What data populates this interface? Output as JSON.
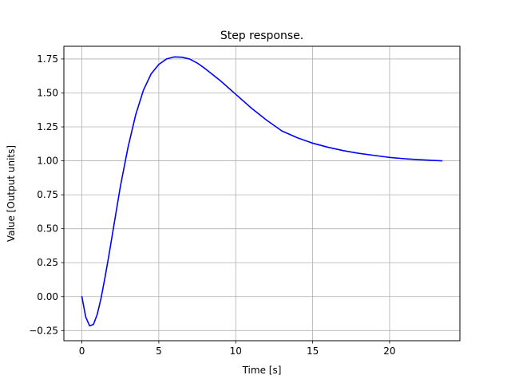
{
  "chart_data": {
    "type": "line",
    "title": "Step response.",
    "xlabel": "Time [s]",
    "ylabel": "Value [Output units]",
    "xlim": [
      -1.17,
      24.57
    ],
    "ylim": [
      -0.3245,
      1.8435
    ],
    "xticks": [
      0,
      5,
      10,
      15,
      20
    ],
    "xtick_labels": [
      "0",
      "5",
      "10",
      "15",
      "20"
    ],
    "yticks": [
      -0.25,
      0,
      0.25,
      0.5,
      0.75,
      1.0,
      1.25,
      1.5,
      1.75
    ],
    "ytick_labels": [
      "−0.25",
      "0.00",
      "0.25",
      "0.50",
      "0.75",
      "1.00",
      "1.25",
      "1.50",
      "1.75"
    ],
    "grid": true,
    "legend": "none",
    "series": [
      {
        "color": "#0000ff",
        "x": [
          0,
          0.25,
          0.5,
          0.75,
          1.0,
          1.25,
          1.5,
          1.75,
          2.0,
          2.5,
          3.0,
          3.5,
          4.0,
          4.5,
          5.0,
          5.5,
          6.0,
          6.5,
          7.0,
          7.5,
          8.0,
          9.0,
          10.0,
          11.0,
          12.0,
          13.0,
          14.0,
          15.0,
          16.0,
          17.0,
          18.0,
          19.0,
          20.0,
          21.0,
          22.0,
          23.4
        ],
        "y": [
          0.0,
          -0.15,
          -0.215,
          -0.205,
          -0.13,
          -0.01,
          0.14,
          0.3,
          0.47,
          0.81,
          1.1,
          1.34,
          1.52,
          1.64,
          1.71,
          1.75,
          1.765,
          1.763,
          1.75,
          1.72,
          1.68,
          1.59,
          1.49,
          1.39,
          1.3,
          1.22,
          1.17,
          1.13,
          1.1,
          1.075,
          1.055,
          1.04,
          1.025,
          1.015,
          1.008,
          1.0
        ]
      }
    ]
  }
}
